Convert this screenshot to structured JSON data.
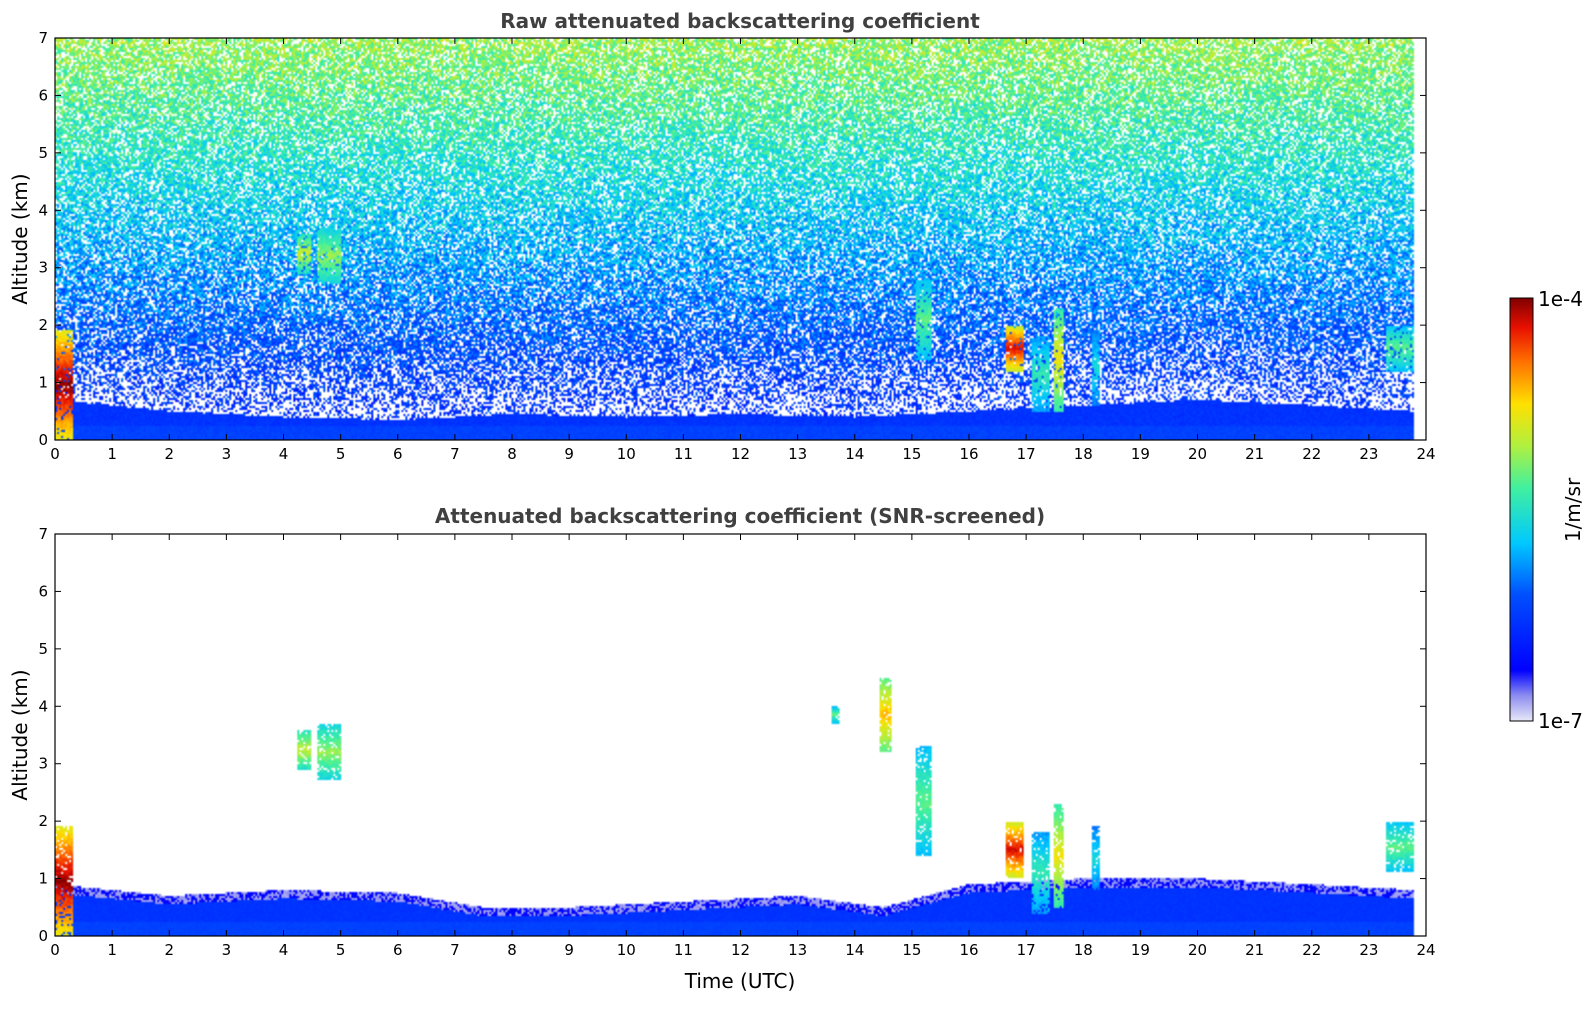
{
  "chart_data": [
    {
      "type": "heatmap",
      "title": "Raw attenuated backscattering coefficient",
      "xlabel": "",
      "ylabel": "Altitude (km)",
      "xlim": [
        0,
        24
      ],
      "ylim": [
        0,
        7
      ],
      "x_ticks": [
        "0",
        "1",
        "2",
        "3",
        "4",
        "5",
        "6",
        "7",
        "8",
        "9",
        "10",
        "11",
        "12",
        "13",
        "14",
        "15",
        "16",
        "17",
        "18",
        "19",
        "20",
        "21",
        "22",
        "23",
        "24"
      ],
      "y_ticks": [
        "0",
        "1",
        "2",
        "3",
        "4",
        "5",
        "6",
        "7"
      ],
      "data_end_hour": 23.8,
      "features": [
        {
          "kind": "boundary_layer",
          "top_km": [
            [
              0,
              0.7
            ],
            [
              2,
              0.5
            ],
            [
              4,
              0.4
            ],
            [
              6,
              0.35
            ],
            [
              8,
              0.45
            ],
            [
              10,
              0.4
            ],
            [
              12,
              0.45
            ],
            [
              14,
              0.4
            ],
            [
              16,
              0.5
            ],
            [
              18,
              0.6
            ],
            [
              20,
              0.7
            ],
            [
              22,
              0.6
            ],
            [
              23.8,
              0.5
            ]
          ],
          "level": 0.22
        },
        {
          "kind": "cloud",
          "t0": 4.25,
          "t1": 4.5,
          "z0": 2.9,
          "z1": 3.6,
          "level": 0.65
        },
        {
          "kind": "cloud",
          "t0": 4.6,
          "t1": 5.0,
          "z0": 2.7,
          "z1": 3.7,
          "level": 0.6
        },
        {
          "kind": "cloud",
          "t0": 16.65,
          "t1": 16.95,
          "z0": 1.2,
          "z1": 2.0,
          "level": 0.9
        },
        {
          "kind": "cloud",
          "t0": 17.1,
          "t1": 17.4,
          "z0": 0.5,
          "z1": 1.8,
          "level": 0.5
        },
        {
          "kind": "cloud",
          "t0": 17.5,
          "t1": 17.65,
          "z0": 0.5,
          "z1": 2.3,
          "level": 0.7
        },
        {
          "kind": "cloud",
          "t0": 18.15,
          "t1": 18.3,
          "z0": 0.6,
          "z1": 1.9,
          "level": 0.45
        },
        {
          "kind": "cloud",
          "t0": 15.05,
          "t1": 15.35,
          "z0": 1.4,
          "z1": 2.8,
          "level": 0.55
        },
        {
          "kind": "cloud",
          "t0": 23.3,
          "t1": 23.8,
          "z0": 1.2,
          "z1": 2.0,
          "level": 0.55
        },
        {
          "kind": "cloud",
          "t0": 0.0,
          "t1": 0.3,
          "z0": 0.0,
          "z1": 1.9,
          "level": 0.95
        }
      ]
    },
    {
      "type": "heatmap",
      "title": "Attenuated backscattering coefficient (SNR-screened)",
      "xlabel": "Time (UTC)",
      "ylabel": "Altitude (km)",
      "xlim": [
        0,
        24
      ],
      "ylim": [
        0,
        7
      ],
      "x_ticks": [
        "0",
        "1",
        "2",
        "3",
        "4",
        "5",
        "6",
        "7",
        "8",
        "9",
        "10",
        "11",
        "12",
        "13",
        "14",
        "15",
        "16",
        "17",
        "18",
        "19",
        "20",
        "21",
        "22",
        "23",
        "24"
      ],
      "y_ticks": [
        "0",
        "1",
        "2",
        "3",
        "4",
        "5",
        "6",
        "7"
      ],
      "data_end_hour": 23.8,
      "features": [
        {
          "kind": "boundary_layer",
          "top_km": [
            [
              0,
              0.9
            ],
            [
              2,
              0.7
            ],
            [
              4,
              0.8
            ],
            [
              6,
              0.75
            ],
            [
              7.5,
              0.5
            ],
            [
              9,
              0.5
            ],
            [
              11,
              0.6
            ],
            [
              13,
              0.7
            ],
            [
              14.5,
              0.5
            ],
            [
              16,
              0.9
            ],
            [
              18,
              1.0
            ],
            [
              20,
              1.0
            ],
            [
              22,
              0.9
            ],
            [
              23.8,
              0.8
            ]
          ],
          "level": 0.22
        },
        {
          "kind": "cloud",
          "t0": 4.25,
          "t1": 4.5,
          "z0": 2.9,
          "z1": 3.6,
          "level": 0.65
        },
        {
          "kind": "cloud",
          "t0": 4.6,
          "t1": 5.0,
          "z0": 2.7,
          "z1": 3.7,
          "level": 0.6
        },
        {
          "kind": "cloud",
          "t0": 16.65,
          "t1": 16.95,
          "z0": 1.0,
          "z1": 2.0,
          "level": 0.9
        },
        {
          "kind": "cloud",
          "t0": 17.1,
          "t1": 17.4,
          "z0": 0.4,
          "z1": 1.8,
          "level": 0.5
        },
        {
          "kind": "cloud",
          "t0": 17.5,
          "t1": 17.65,
          "z0": 0.5,
          "z1": 2.3,
          "level": 0.7
        },
        {
          "kind": "cloud",
          "t0": 18.15,
          "t1": 18.3,
          "z0": 0.8,
          "z1": 1.9,
          "level": 0.45
        },
        {
          "kind": "cloud",
          "t0": 15.05,
          "t1": 15.35,
          "z0": 1.4,
          "z1": 3.3,
          "level": 0.55
        },
        {
          "kind": "cloud",
          "t0": 23.3,
          "t1": 23.8,
          "z0": 1.1,
          "z1": 2.0,
          "level": 0.55
        },
        {
          "kind": "cloud",
          "t0": 14.45,
          "t1": 14.65,
          "z0": 3.2,
          "z1": 4.5,
          "level": 0.75
        },
        {
          "kind": "cloud",
          "t0": 13.6,
          "t1": 13.75,
          "z0": 3.7,
          "z1": 4.0,
          "level": 0.55
        },
        {
          "kind": "cloud",
          "t0": 0.0,
          "t1": 0.3,
          "z0": 0.0,
          "z1": 1.9,
          "level": 0.95
        }
      ]
    }
  ],
  "colorbar": {
    "label": "1/m/sr",
    "max_label": "1e-4",
    "min_label": "1e-7",
    "scale": "log",
    "colormap": "jet"
  }
}
